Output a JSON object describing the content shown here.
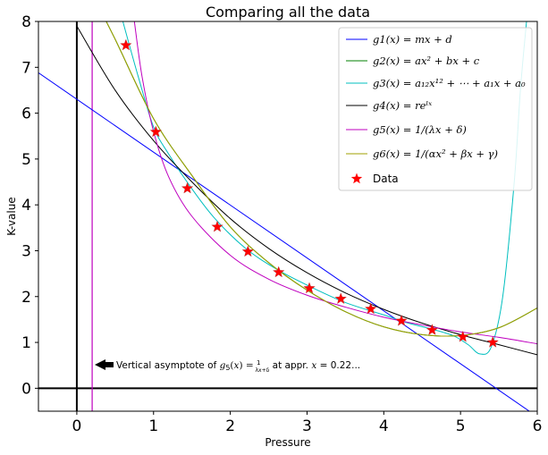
{
  "chart_data": {
    "type": "line",
    "title": "Comparing all the data",
    "xlabel": "Pressure",
    "ylabel": "K-value",
    "xlim": [
      -0.5,
      6
    ],
    "ylim": [
      -0.5,
      8
    ],
    "xticks": [
      0,
      1,
      2,
      3,
      4,
      5,
      6
    ],
    "yticks": [
      0,
      1,
      2,
      3,
      4,
      5,
      6,
      7,
      8
    ],
    "grid": false,
    "legend_position": "top-right",
    "series": [
      {
        "name": "g1(x) = mx + d",
        "color": "#0000ff",
        "kind": "line",
        "x": [
          -0.5,
          0,
          1,
          2,
          3,
          4,
          5,
          6
        ],
        "y": [
          6.88,
          6.3,
          5.15,
          4.0,
          2.84,
          1.69,
          0.54,
          -0.62
        ]
      },
      {
        "name": "g2(x) = ax² + bx + c",
        "color": "#008000",
        "kind": "line",
        "x": [
          0.2,
          0.5,
          1,
          1.5,
          2,
          2.5,
          3,
          3.5,
          4,
          4.5,
          5,
          5.5,
          6
        ],
        "y": [
          8.6,
          7.61,
          5.88,
          4.64,
          3.52,
          2.74,
          2.14,
          1.67,
          1.34,
          1.17,
          1.15,
          1.32,
          1.75
        ]
      },
      {
        "name": "g3(x) = a₁₂x¹² + ⋯ + a₁x + a₀",
        "color": "#00bfbf",
        "kind": "line",
        "x": [
          0.6,
          0.8,
          1.0,
          1.2,
          1.5,
          1.8,
          2.2,
          2.6,
          3.0,
          3.5,
          4.0,
          4.3,
          4.6,
          4.9,
          5.1,
          5.25,
          5.4,
          5.55,
          5.7,
          5.78,
          5.86
        ],
        "y": [
          8.0,
          6.8,
          5.7,
          5.1,
          4.35,
          3.7,
          3.05,
          2.6,
          2.25,
          1.87,
          1.6,
          1.43,
          1.3,
          1.15,
          0.95,
          0.75,
          0.9,
          2.0,
          4.5,
          6.5,
          8.0
        ]
      },
      {
        "name": "g4(x) = reˡˣ",
        "color": "#000000",
        "kind": "line",
        "x": [
          0,
          0.5,
          1,
          1.5,
          2,
          2.5,
          3,
          3.5,
          4,
          4.5,
          5,
          5.5,
          6
        ],
        "y": [
          7.9,
          6.5,
          5.4,
          4.5,
          3.7,
          3.05,
          2.52,
          2.08,
          1.72,
          1.42,
          1.17,
          0.95,
          0.73
        ]
      },
      {
        "name": "g5(x) = 1/(λx + δ)",
        "color": "#bf00bf",
        "kind": "line",
        "x": [
          0.75,
          0.85,
          1.0,
          1.2,
          1.5,
          2.0,
          2.5,
          3.0,
          3.5,
          4.0,
          4.5,
          5.0,
          5.5,
          6.0
        ],
        "y": [
          8.0,
          6.8,
          5.6,
          4.6,
          3.75,
          2.9,
          2.38,
          2.03,
          1.77,
          1.55,
          1.38,
          1.23,
          1.11,
          0.97
        ]
      },
      {
        "name": "g6(x) = 1/(αx² + βx + γ)",
        "color": "#a0a000",
        "kind": "line",
        "x": [
          0.2,
          0.5,
          1,
          1.5,
          2,
          2.5,
          3,
          3.5,
          4,
          4.5,
          5,
          5.5,
          6
        ],
        "y": [
          8.6,
          7.61,
          5.88,
          4.64,
          3.52,
          2.74,
          2.14,
          1.67,
          1.34,
          1.17,
          1.15,
          1.32,
          1.75
        ]
      },
      {
        "name": "Data",
        "color": "#ff0000",
        "kind": "scatter",
        "x": [
          0.64,
          1.03,
          1.44,
          1.83,
          2.23,
          2.63,
          3.03,
          3.44,
          3.83,
          4.23,
          4.63,
          5.03,
          5.42
        ],
        "y": [
          7.48,
          5.59,
          4.36,
          3.52,
          2.98,
          2.53,
          2.18,
          1.95,
          1.73,
          1.47,
          1.27,
          1.12,
          1.0
        ]
      }
    ],
    "reference_lines": [
      {
        "kind": "vertical",
        "x": 0,
        "color": "#000000"
      },
      {
        "kind": "horizontal",
        "y": 0,
        "color": "#000000"
      },
      {
        "kind": "vertical",
        "x": 0.2,
        "color": "#bf00bf"
      }
    ],
    "annotation": {
      "text": "Vertical asymptote of g₅(x) = 1/(λx+δ) at appr. x = 0.22...",
      "point": [
        0.2,
        0.5
      ]
    }
  }
}
